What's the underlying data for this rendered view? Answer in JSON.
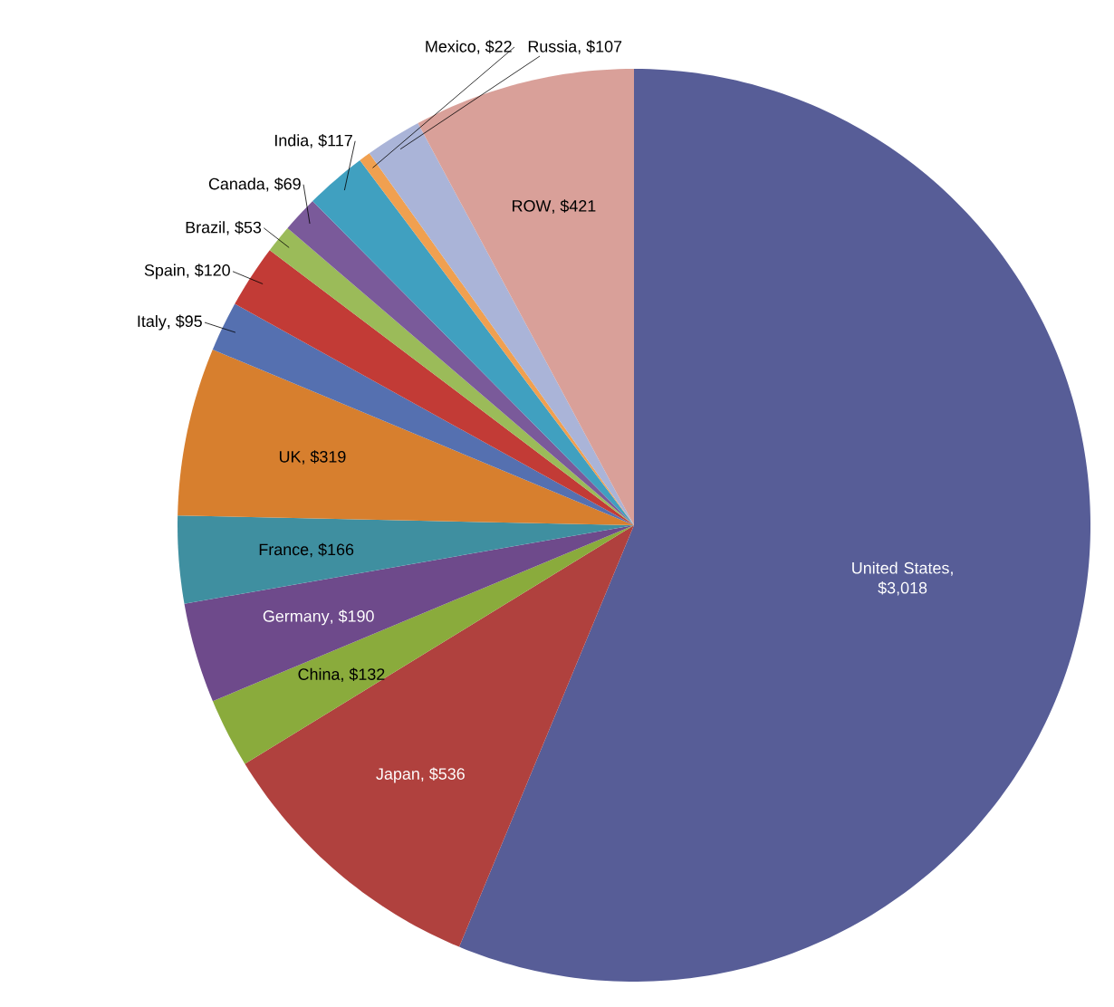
{
  "chart_data": {
    "type": "pie",
    "categories": [
      "United States",
      "Japan",
      "China",
      "Germany",
      "France",
      "UK",
      "Italy",
      "Spain",
      "Brazil",
      "Canada",
      "India",
      "Mexico",
      "Russia",
      "ROW"
    ],
    "values": [
      3018,
      536,
      132,
      190,
      166,
      319,
      95,
      120,
      53,
      69,
      117,
      22,
      107,
      421
    ],
    "value_labels": [
      ", $3,018",
      ", $536",
      ", $132",
      ", $190",
      ", $166",
      ", $319",
      ", $95",
      ", $120",
      ", $53",
      ", $69",
      ", $117",
      ", $22",
      ", $107",
      ", $421"
    ],
    "colors": [
      "#575d97",
      "#b0413e",
      "#8aab3c",
      "#6e4a8b",
      "#3f8fa0",
      "#d77f2e",
      "#5570b0",
      "#c23b36",
      "#9bbb59",
      "#7a5a9a",
      "#40a0c0",
      "#f0a050",
      "#aab4d8",
      "#d9a099"
    ]
  }
}
